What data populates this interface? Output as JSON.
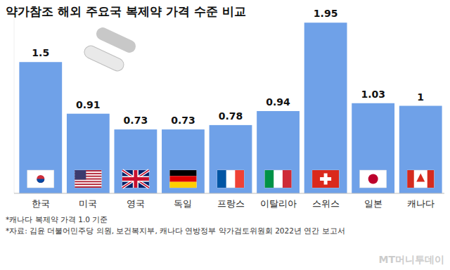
{
  "chart_data": {
    "type": "bar",
    "title": "약가참조 해외 주요국 복제약 가격 수준 비교",
    "categories": [
      "한국",
      "미국",
      "영국",
      "독일",
      "프랑스",
      "이탈리아",
      "스위스",
      "일본",
      "캐나다"
    ],
    "values": [
      1.5,
      0.91,
      0.73,
      0.73,
      0.78,
      0.94,
      1.95,
      1.03,
      1
    ],
    "color": "#6fa1e8",
    "ylim": [
      0,
      2
    ],
    "grid": false,
    "data_labels": true,
    "tick_labels": "x",
    "notes": [
      "*캐나다 복제약 가격 1.0 기준",
      "*자료: 김윤 더불어민주당 의원, 보건복지부, 캐나다 연방정부 약가검토위원회 2022년 연간 보고서"
    ],
    "watermark": "MT머니투데이"
  }
}
